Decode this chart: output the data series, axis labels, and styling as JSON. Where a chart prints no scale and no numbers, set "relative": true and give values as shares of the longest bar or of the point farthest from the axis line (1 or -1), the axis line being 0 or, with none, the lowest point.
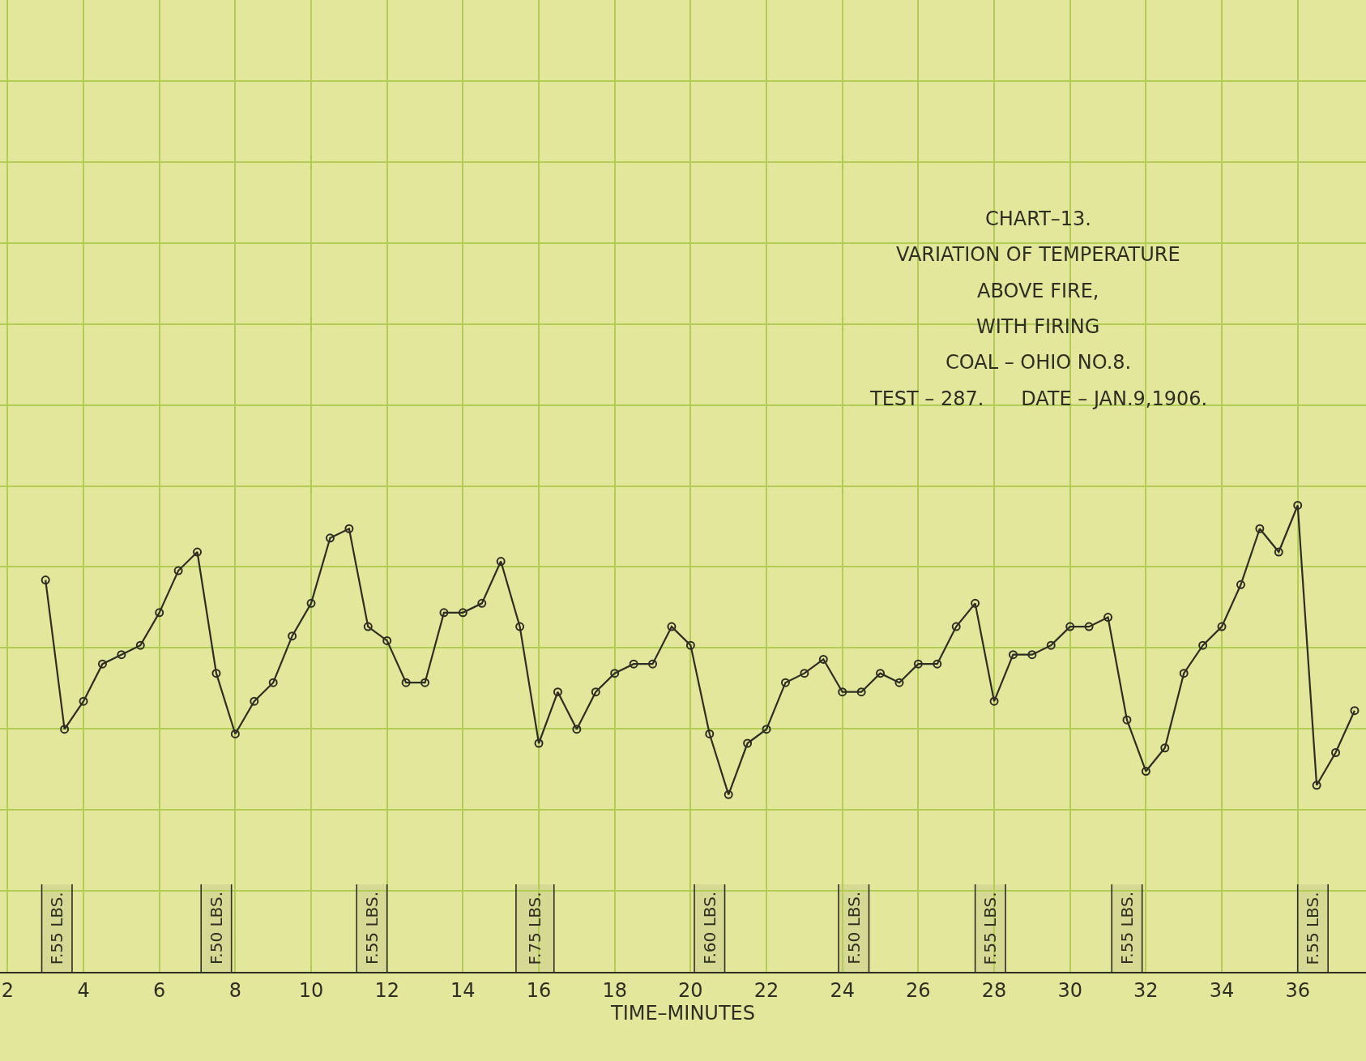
{
  "chart_data": {
    "type": "line",
    "title": "CHART–13.",
    "subtitle": "VARIATION OF TEMPERATURE ABOVE FIRE, WITH FIRING",
    "xlabel": "TIME–MINUTES",
    "relative": true,
    "x": [
      3,
      3.5,
      4,
      4.5,
      5,
      5.5,
      6,
      6.5,
      7,
      7.5,
      8,
      8.5,
      9,
      9.5,
      10,
      10.5,
      11,
      11.5,
      12,
      12.5,
      13,
      13.5,
      14,
      14.5,
      15,
      15.5,
      16,
      16.5,
      17,
      17.5,
      18,
      18.5,
      19,
      19.5,
      20,
      20.5,
      21,
      21.5,
      22,
      22.5,
      23,
      23.5,
      24,
      24.5,
      25,
      25.5,
      26,
      26.5,
      27,
      27.5,
      28,
      28.5,
      29,
      29.5,
      30,
      30.5,
      31,
      31.5,
      32,
      32.5,
      33,
      33.5,
      34,
      34.5,
      35,
      35.5,
      36,
      36.5,
      37,
      37.5
    ],
    "series": [
      {
        "color": "#2e2e22",
        "values": [
          0.84,
          0.52,
          0.58,
          0.66,
          0.68,
          0.7,
          0.77,
          0.86,
          0.9,
          0.64,
          0.51,
          0.58,
          0.62,
          0.72,
          0.79,
          0.93,
          0.95,
          0.74,
          0.71,
          0.62,
          0.62,
          0.77,
          0.77,
          0.79,
          0.88,
          0.74,
          0.49,
          0.6,
          0.52,
          0.6,
          0.64,
          0.66,
          0.66,
          0.74,
          0.7,
          0.51,
          0.38,
          0.49,
          0.52,
          0.62,
          0.64,
          0.67,
          0.6,
          0.6,
          0.64,
          0.62,
          0.66,
          0.66,
          0.74,
          0.79,
          0.58,
          0.68,
          0.68,
          0.7,
          0.74,
          0.74,
          0.76,
          0.54,
          0.43,
          0.48,
          0.64,
          0.7,
          0.74,
          0.83,
          0.95,
          0.9,
          1,
          0.4,
          0.47,
          0.56
        ]
      }
    ],
    "xlim": [
      1.8,
      37.8
    ],
    "xticks": [
      2,
      4,
      6,
      8,
      10,
      12,
      14,
      16,
      18,
      20,
      22,
      24,
      26,
      28,
      30,
      32,
      34,
      36
    ],
    "grid": true,
    "marker": "circle",
    "line_style": "solid",
    "bands": [
      {
        "axis": "x",
        "from": 2.9,
        "to": 3.7,
        "label": "F.55 LBS."
      },
      {
        "axis": "x",
        "from": 7.1,
        "to": 7.9,
        "label": "F.50 LBS."
      },
      {
        "axis": "x",
        "from": 11.2,
        "to": 12.0,
        "label": "F.55 LBS."
      },
      {
        "axis": "x",
        "from": 15.4,
        "to": 16.4,
        "label": "F.75 LBS."
      },
      {
        "axis": "x",
        "from": 20.1,
        "to": 20.9,
        "label": "F.60 LBS."
      },
      {
        "axis": "x",
        "from": 23.9,
        "to": 24.7,
        "label": "F.50 LBS."
      },
      {
        "axis": "x",
        "from": 27.5,
        "to": 28.3,
        "label": "F.55 LBS."
      },
      {
        "axis": "x",
        "from": 31.1,
        "to": 31.9,
        "label": "F.55 LBS."
      },
      {
        "axis": "x",
        "from": 36.0,
        "to": 36.8,
        "label": "F.55 LBS."
      }
    ],
    "annotations": [
      "COAL – OHIO NO.8.",
      "TEST – 287.      DATE – JAN.9,1906."
    ]
  }
}
